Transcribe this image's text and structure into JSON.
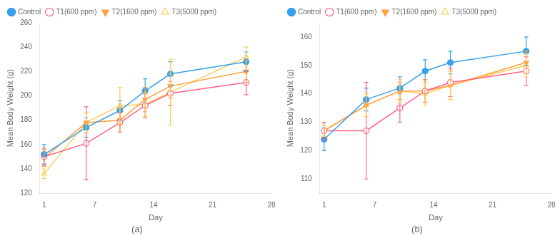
{
  "chart_data": [
    {
      "type": "line",
      "title": "(a)",
      "xlabel": "Day",
      "ylabel": "Mean Body Weight (g)",
      "x": [
        1,
        6,
        10,
        13,
        16,
        25
      ],
      "xlim": [
        0.5,
        28
      ],
      "xticks": [
        1,
        7,
        14,
        21,
        28
      ],
      "ylim": [
        120,
        260
      ],
      "yticks": [
        120,
        140,
        160,
        180,
        200,
        220,
        240,
        260
      ],
      "grid": false,
      "legend": "upper left",
      "series": [
        {
          "name": "Control",
          "marker": "circle",
          "values": [
            152,
            174,
            188,
            204,
            218,
            228
          ],
          "errors": [
            8,
            8,
            8,
            10,
            10,
            8
          ]
        },
        {
          "name": "T1(600 ppm)",
          "marker": "circle-open",
          "values": [
            150,
            161,
            178,
            192,
            202,
            211
          ],
          "errors": [
            7,
            30,
            8,
            10,
            10,
            10
          ]
        },
        {
          "name": "T2(1600 ppm)",
          "marker": "triangle-down",
          "values": [
            149,
            178,
            180,
            197,
            208,
            220
          ],
          "errors": [
            7,
            8,
            10,
            10,
            10,
            9
          ]
        },
        {
          "name": "T3(5000 ppm)",
          "marker": "triangle-up-open",
          "values": [
            136,
            178,
            192,
            193,
            203,
            232
          ],
          "errors": [
            4,
            8,
            15,
            10,
            27,
            8
          ]
        }
      ]
    },
    {
      "type": "line",
      "title": "(b)",
      "xlabel": "Day",
      "ylabel": "Mean Body Weight (g)",
      "x": [
        1,
        6,
        10,
        13,
        16,
        25
      ],
      "xlim": [
        0.5,
        28
      ],
      "xticks": [
        1,
        7,
        14,
        21,
        28
      ],
      "ylim": [
        105,
        165
      ],
      "yticks": [
        110,
        120,
        130,
        140,
        150,
        160
      ],
      "grid": false,
      "legend": "upper left",
      "series": [
        {
          "name": "Control",
          "marker": "circle",
          "values": [
            124,
            138,
            142,
            148,
            151,
            155
          ],
          "errors": [
            4,
            4,
            4,
            4,
            4,
            5
          ]
        },
        {
          "name": "T1(600 ppm)",
          "marker": "circle-open",
          "values": [
            127,
            127,
            135,
            141,
            144,
            148
          ],
          "errors": [
            3,
            17,
            5,
            4,
            5,
            5
          ]
        },
        {
          "name": "T2(1600 ppm)",
          "marker": "triangle-down",
          "values": [
            127,
            136,
            141,
            141,
            143,
            151
          ],
          "errors": [
            2,
            4,
            3,
            4,
            5,
            4
          ]
        },
        {
          "name": "T3(5000 ppm)",
          "marker": "triangle-up-open",
          "values": [
            127,
            136,
            141,
            140,
            143,
            150
          ],
          "errors": [
            2,
            4,
            4,
            4,
            5,
            4
          ]
        }
      ]
    }
  ]
}
